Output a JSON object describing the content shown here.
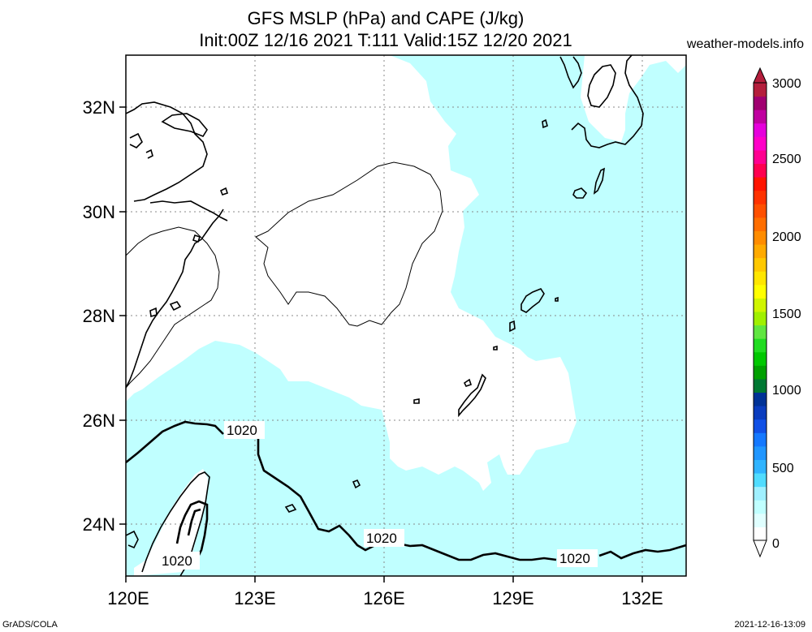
{
  "header": {
    "title_line1": "GFS MSLP (hPa) and CAPE (J/kg)",
    "title_line2": "Init:00Z 12/16 2021 T:111 Valid:15Z 12/20 2021",
    "brand": "weather-models.info"
  },
  "map": {
    "lat_labels": [
      "32N",
      "30N",
      "28N",
      "26N",
      "24N"
    ],
    "lon_labels": [
      "120E",
      "123E",
      "126E",
      "129E",
      "132E"
    ],
    "isobar_labels": [
      "1020",
      "1020",
      "1020",
      "1020"
    ],
    "ocean_cape_color": "#c0ffff",
    "land_color": "#ffffff"
  },
  "colorbar": {
    "labels": [
      "3000",
      "2500",
      "2000",
      "1500",
      "1000",
      "500",
      "0"
    ],
    "colors": [
      "#ffffff",
      "#e0ffff",
      "#c0ffff",
      "#a0f0ff",
      "#50dcff",
      "#30b4ff",
      "#2096ff",
      "#1478ff",
      "#1050e6",
      "#0a3cbe",
      "#003296",
      "#007832",
      "#00a000",
      "#00c800",
      "#20dc20",
      "#60e640",
      "#a0f000",
      "#d0f500",
      "#ffff00",
      "#ffe600",
      "#ffc800",
      "#ffaa00",
      "#ff8c00",
      "#ff6e00",
      "#ff5000",
      "#ff3200",
      "#ff1400",
      "#ff0050",
      "#ff0090",
      "#ff00c8",
      "#e600dc",
      "#c000a0",
      "#a00070",
      "#b41e3c"
    ]
  },
  "footer": {
    "left": "GrADS/COLA",
    "right": "2021-12-16-13:09"
  }
}
